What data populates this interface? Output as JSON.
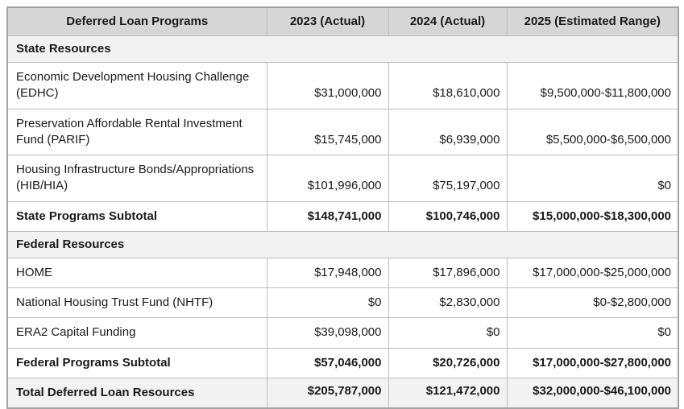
{
  "table": {
    "columns": [
      "Deferred Loan Programs",
      "2023 (Actual)",
      "2024 (Actual)",
      "2025 (Estimated Range)"
    ],
    "rows": [
      {
        "type": "section",
        "label": "State Resources"
      },
      {
        "type": "data",
        "label": "Economic Development Housing Challenge (EDHC)",
        "v2023": "$31,000,000",
        "v2024": "$18,610,000",
        "v2025": "$9,500,000-$11,800,000"
      },
      {
        "type": "data",
        "label": "Preservation Affordable Rental Investment Fund (PARIF)",
        "v2023": "$15,745,000",
        "v2024": "$6,939,000",
        "v2025": "$5,500,000-$6,500,000"
      },
      {
        "type": "data",
        "label": "Housing Infrastructure Bonds/Appropriations (HIB/HIA)",
        "v2023": "$101,996,000",
        "v2024": "$75,197,000",
        "v2025": "$0"
      },
      {
        "type": "subtotal",
        "label": "State Programs Subtotal",
        "v2023": "$148,741,000",
        "v2024": "$100,746,000",
        "v2025": "$15,000,000-$18,300,000"
      },
      {
        "type": "section",
        "label": "Federal Resources"
      },
      {
        "type": "data",
        "label": "HOME",
        "v2023": "$17,948,000",
        "v2024": "$17,896,000",
        "v2025": "$17,000,000-$25,000,000"
      },
      {
        "type": "data",
        "label": "National Housing Trust Fund (NHTF)",
        "v2023": "$0",
        "v2024": "$2,830,000",
        "v2025": "$0-$2,800,000"
      },
      {
        "type": "data",
        "label": "ERA2 Capital Funding",
        "v2023": "$39,098,000",
        "v2024": "$0",
        "v2025": "$0"
      },
      {
        "type": "subtotal",
        "label": "Federal Programs Subtotal",
        "v2023": "$57,046,000",
        "v2024": "$20,726,000",
        "v2025": "$17,000,000-$27,800,000"
      },
      {
        "type": "total",
        "label": "Total Deferred Loan Resources",
        "v2023": "$205,787,000",
        "v2024": "$121,472,000",
        "v2025": "$32,000,000-$46,100,000"
      }
    ],
    "colors": {
      "header_bg": "#d6d6d6",
      "section_bg": "#f2f2f2",
      "outer_border": "#a3a3a3",
      "inner_border": "#bdbdbd"
    }
  }
}
